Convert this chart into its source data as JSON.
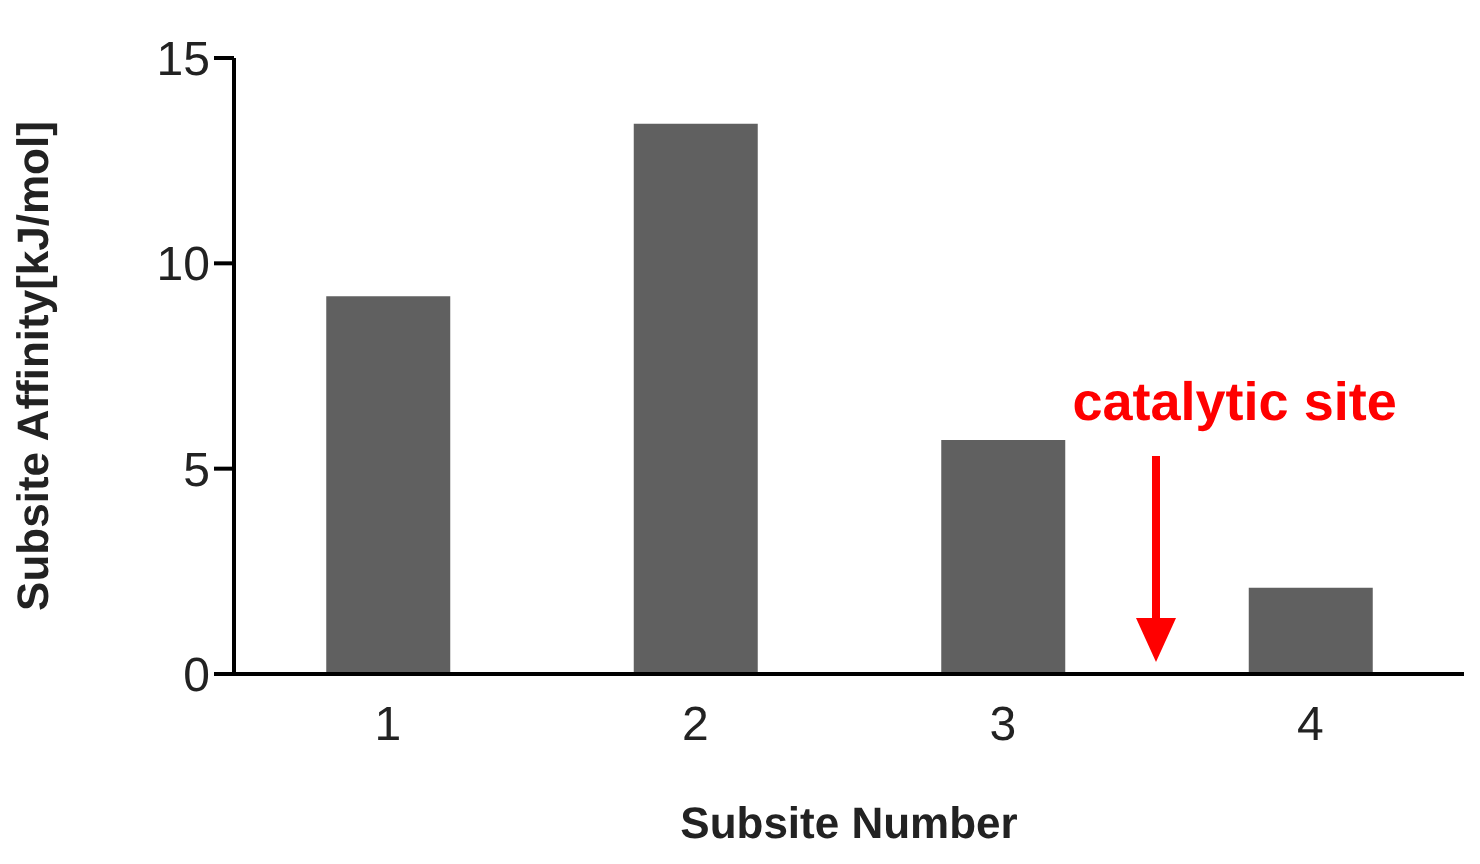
{
  "chart_data": {
    "type": "bar",
    "xlabel": "Subsite Number",
    "ylabel": "Subsite Affinity[kJ/mol]",
    "categories": [
      "1",
      "2",
      "3",
      "4"
    ],
    "values": [
      9.2,
      13.4,
      5.7,
      2.1
    ],
    "color": "#606060",
    "ylim": [
      0,
      15
    ],
    "yticks": [
      0,
      5,
      10,
      15
    ],
    "annotations": [
      "catalytic site"
    ]
  }
}
